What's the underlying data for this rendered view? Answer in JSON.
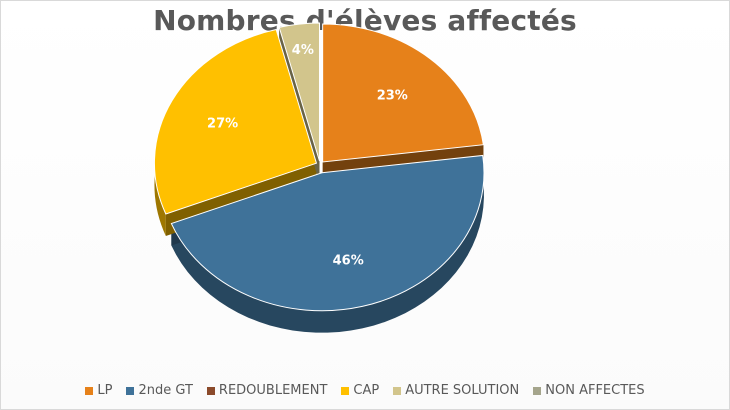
{
  "chart_data": {
    "type": "pie",
    "title": "Nombres d'élèves affectés",
    "categories": [
      "LP",
      "2nde GT",
      "REDOUBLEMENT",
      "CAP",
      "AUTRE SOLUTION",
      "NON AFFECTES"
    ],
    "values": [
      23,
      46,
      0,
      27,
      4,
      0
    ],
    "data_labels": [
      "23%",
      "46%",
      "",
      "27%",
      "4%",
      ""
    ],
    "colors": [
      "#E6811A",
      "#3F7299",
      "#8B4A2B",
      "#FFC000",
      "#D2C58C",
      "#A5A58C"
    ],
    "legend_position": "bottom",
    "three_d": true
  }
}
